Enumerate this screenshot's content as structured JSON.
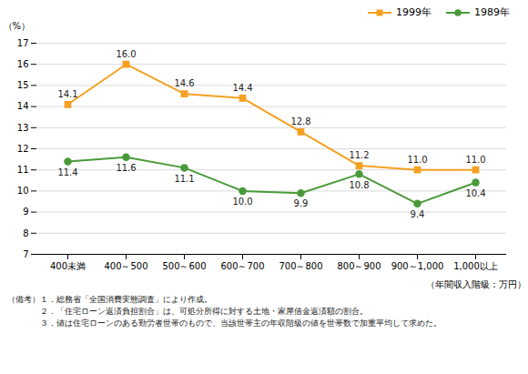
{
  "chart_data": {
    "type": "line",
    "categories": [
      "400未満",
      "400～500",
      "500～600",
      "600～700",
      "700～800",
      "800～900",
      "900～1,000",
      "1,000以上"
    ],
    "series": [
      {
        "name": "1999年",
        "color": "#F5A020",
        "marker": "square",
        "values": [
          14.1,
          16.0,
          14.6,
          14.4,
          12.8,
          11.2,
          11.0,
          11.0
        ],
        "value_labels": [
          "14.1",
          "16.0",
          "14.6",
          "14.4",
          "12.8",
          "11.2",
          "11.0",
          "11.0"
        ]
      },
      {
        "name": "1989年",
        "color": "#4A9A3A",
        "marker": "circle",
        "values": [
          11.4,
          11.6,
          11.1,
          10.0,
          9.9,
          10.8,
          9.4,
          10.4
        ],
        "value_labels": [
          "11.4",
          "11.6",
          "11.1",
          "10.0",
          "9.9",
          "10.8",
          "9.4",
          "10.4"
        ]
      }
    ],
    "y_label": "（%）",
    "x_label": "（年間収入階級：万円）",
    "ylim": [
      7,
      17
    ],
    "yticks": [
      7,
      8,
      9,
      10,
      11,
      12,
      13,
      14,
      15,
      16,
      17
    ],
    "grid": true,
    "legend": "upper right",
    "data_labels": true,
    "notes": [
      "（備考）１．総務省「全国消費実態調査」により作成。",
      "　　　　２．「住宅ローン返済負担割合」は、可処分所得に対する土地・家屋借金返済額の割合。",
      "　　　　３．値は住宅ローンのある勤労者世帯のもので、当該世帯主の年収階級の値を世帯数で加重平均して求めた。"
    ]
  }
}
